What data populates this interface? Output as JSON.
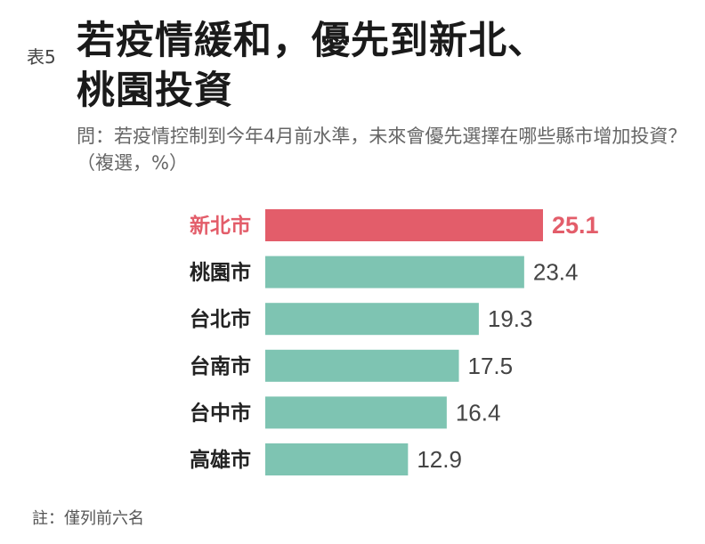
{
  "header": {
    "table_no": "表5",
    "title_line1": "若疫情緩和，優先到新北、",
    "title_line2": "桃園投資",
    "question": "問：若疫情控制到今年4月前水準，未來會優先選擇在哪些縣市增加投資？（複選，%）"
  },
  "colors": {
    "highlight": "#e35d6a",
    "bar": "#7ec4b2",
    "label": "#222222"
  },
  "chart_data": {
    "type": "bar",
    "orientation": "horizontal",
    "categories": [
      "新北市",
      "桃園市",
      "台北市",
      "台南市",
      "台中市",
      "高雄市"
    ],
    "values": [
      25.1,
      23.4,
      19.3,
      17.5,
      16.4,
      12.9
    ],
    "value_labels": [
      "25.1",
      "23.4",
      "19.3",
      "17.5",
      "16.4",
      "12.9"
    ],
    "highlight_index": 0,
    "xlim": [
      0,
      25.1
    ],
    "grid": false,
    "legend": "none"
  },
  "note": "註：僅列前六名"
}
